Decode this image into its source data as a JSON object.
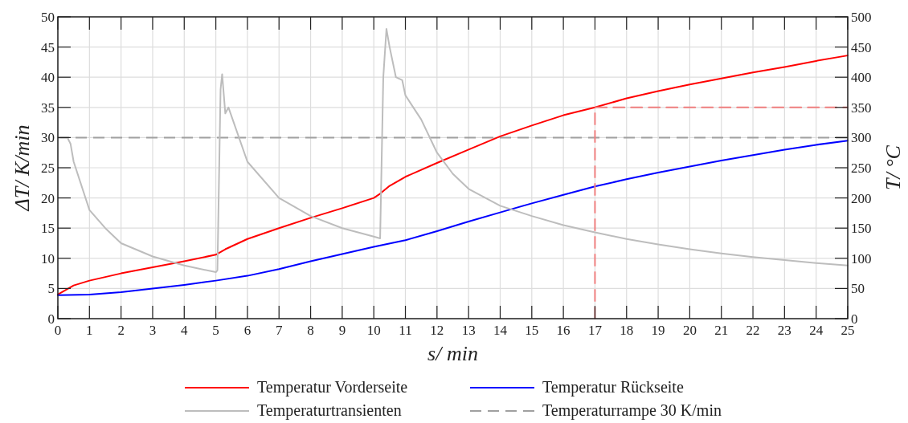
{
  "chart_data": {
    "type": "line",
    "xlabel": "s/ min",
    "ylabel": "ΔT/ K/min",
    "y2label": "T/ °C",
    "xlim": [
      0,
      25
    ],
    "xticks": [
      0,
      1,
      2,
      3,
      4,
      5,
      6,
      7,
      8,
      9,
      10,
      11,
      12,
      13,
      14,
      15,
      16,
      17,
      18,
      19,
      20,
      21,
      22,
      23,
      24,
      25
    ],
    "ylim": [
      0,
      50
    ],
    "yticks": [
      0,
      5,
      10,
      15,
      20,
      25,
      30,
      35,
      40,
      45,
      50
    ],
    "y2lim": [
      0,
      500
    ],
    "y2ticks": [
      0,
      50,
      100,
      150,
      200,
      250,
      300,
      350,
      400,
      450,
      500
    ],
    "grid": true,
    "legend": "bottom",
    "line_style": "solid",
    "marker": "none",
    "series": [
      {
        "name": "Temperatur Vorderseite",
        "color": "#ff0000",
        "axis": "y2",
        "x": [
          0,
          0.5,
          1,
          2,
          3,
          4,
          5,
          5.3,
          6,
          7,
          8,
          9,
          10,
          10.2,
          10.5,
          11,
          12,
          13,
          14,
          15,
          16,
          17,
          18,
          19,
          20,
          21,
          22,
          23,
          24,
          25
        ],
        "values": [
          40,
          55,
          63,
          75,
          85,
          95,
          106,
          115,
          132,
          150,
          167,
          183,
          200,
          207,
          220,
          235,
          258,
          280,
          302,
          320,
          337,
          350,
          365,
          377,
          388,
          398,
          408,
          417,
          427,
          436
        ]
      },
      {
        "name": "Temperatur Rückseite",
        "color": "#0000ff",
        "axis": "y2",
        "x": [
          0,
          1,
          2,
          3,
          4,
          5,
          6,
          7,
          8,
          9,
          10,
          11,
          12,
          13,
          14,
          15,
          16,
          17,
          18,
          19,
          20,
          21,
          22,
          23,
          24,
          25
        ],
        "values": [
          39,
          40,
          44,
          50,
          56,
          63,
          71,
          82,
          95,
          107,
          119,
          130,
          145,
          161,
          176,
          191,
          205,
          219,
          231,
          242,
          252,
          262,
          271,
          280,
          288,
          295
        ]
      },
      {
        "name": "Temperaturtransienten",
        "color": "#bdbdbd",
        "x": [
          0.1,
          0.3,
          0.4,
          0.5,
          1,
          1.5,
          2,
          3,
          4,
          5,
          5.05,
          5.15,
          5.2,
          5.3,
          5.4,
          6,
          7,
          8,
          9,
          10,
          10.2,
          10.3,
          10.4,
          10.5,
          10.7,
          10.9,
          11,
          11.5,
          12,
          12.5,
          13,
          14,
          15,
          16,
          17,
          18,
          19,
          20,
          21,
          22,
          23,
          24,
          25
        ],
        "values": [
          30,
          30,
          29,
          26,
          18,
          15,
          12.5,
          10.3,
          8.8,
          7.7,
          8,
          38,
          40.5,
          34,
          35,
          26,
          20,
          17,
          15,
          13.6,
          13.3,
          40,
          48,
          45,
          40,
          39.5,
          37,
          33,
          27.5,
          24,
          21.5,
          18.7,
          17,
          15.5,
          14.3,
          13.2,
          12.3,
          11.5,
          10.8,
          10.2,
          9.7,
          9.2,
          8.8
        ]
      },
      {
        "color": "#f08080",
        "axis": "y2",
        "line_style": "dashed",
        "x": [
          17,
          17,
          25
        ],
        "values": [
          0,
          350,
          350
        ]
      }
    ],
    "ref_lines": [
      {
        "axis": "y",
        "value": 30,
        "label": "Temperaturrampe  30 K/min",
        "color": "#a0a0a0",
        "line_style": "dashed"
      }
    ]
  }
}
